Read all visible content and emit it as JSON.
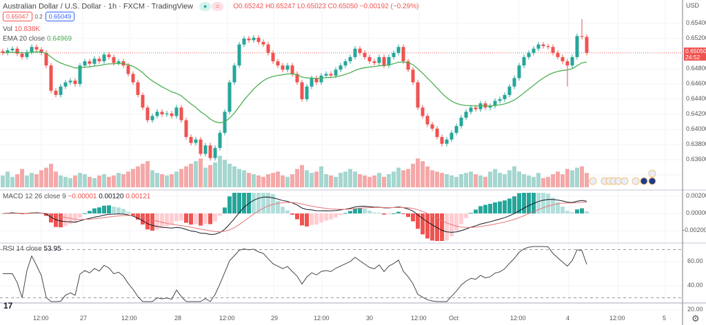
{
  "header": {
    "title": "Australian Dollar / U.S. Dollar · 1h · FXCM · TradingView",
    "ohlc": "O0.65242 H0.65247 L0.65023 C0.65050 −0.00192 (−0.29%)",
    "bid": "0.65047",
    "spread": "0.2",
    "ask": "0.65049"
  },
  "indicators": {
    "vol_label": "Vol",
    "vol_value": "10.838K",
    "ema_label": "EMA 20 close",
    "ema_value": "0.64969",
    "macd_label": "MACD 12 26 close 9",
    "macd_v1": "−0.00001",
    "macd_v2": "0.00120",
    "macd_v3": "0.00121",
    "rsi_label": "RSI 14 close",
    "rsi_value": "53.95"
  },
  "price_axis": {
    "currency": "USD",
    "ticks": [
      "0.65400",
      "0.65200",
      "0.64800",
      "0.64600",
      "0.64400",
      "0.64200",
      "0.64000",
      "0.63800",
      "0.63600"
    ],
    "last_price": "0.65050",
    "countdown": "24:52"
  },
  "macd_axis": {
    "ticks": [
      "0.00200",
      "0.00000",
      "-0.00200"
    ]
  },
  "rsi_axis": {
    "ticks": [
      "60.00",
      "40.00",
      "20.00"
    ]
  },
  "time_axis": {
    "ticks": [
      "12:00",
      "27",
      "12:00",
      "28",
      "12:00",
      "29",
      "12:00",
      "30",
      "12:00",
      "Oct",
      "12:00",
      "4",
      "12:00",
      "5"
    ]
  },
  "colors": {
    "up": "#26a69a",
    "down": "#ef5350",
    "ema": "#4caf50",
    "macd": "#131722",
    "signal": "#e57373"
  },
  "chart_data": {
    "type": "candlestick",
    "title": "Australian Dollar / U.S. Dollar · 1h · FXCM",
    "ylim": [
      0.6352,
      0.656
    ],
    "closes": [
      0.6505,
      0.6508,
      0.651,
      0.6504,
      0.65,
      0.6506,
      0.6512,
      0.6509,
      0.6505,
      0.649,
      0.646,
      0.6455,
      0.6465,
      0.647,
      0.6472,
      0.6468,
      0.649,
      0.6495,
      0.6492,
      0.6498,
      0.6495,
      0.6503,
      0.65,
      0.6493,
      0.6495,
      0.649,
      0.648,
      0.647,
      0.6455,
      0.644,
      0.6425,
      0.643,
      0.6435,
      0.6432,
      0.6433,
      0.643,
      0.644,
      0.6425,
      0.6405,
      0.6398,
      0.6402,
      0.6385,
      0.6395,
      0.638,
      0.6392,
      0.641,
      0.6435,
      0.647,
      0.649,
      0.6515,
      0.6522,
      0.652,
      0.6523,
      0.6518,
      0.6515,
      0.6505,
      0.6495,
      0.649,
      0.6485,
      0.649,
      0.648,
      0.647,
      0.645,
      0.6465,
      0.6475,
      0.647,
      0.6478,
      0.648,
      0.6478,
      0.6485,
      0.649,
      0.6495,
      0.65,
      0.651,
      0.6505,
      0.65,
      0.6495,
      0.6493,
      0.65,
      0.649,
      0.65,
      0.6505,
      0.6512,
      0.6495,
      0.6485,
      0.647,
      0.644,
      0.643,
      0.642,
      0.6415,
      0.6405,
      0.6397,
      0.6402,
      0.641,
      0.6418,
      0.6428,
      0.6435,
      0.644,
      0.6438,
      0.6445,
      0.644,
      0.6442,
      0.6448,
      0.645,
      0.6455,
      0.6465,
      0.6475,
      0.649,
      0.65,
      0.6505,
      0.651,
      0.6515,
      0.6513,
      0.6512,
      0.6505,
      0.65,
      0.6495,
      0.649,
      0.65,
      0.6525,
      0.6524,
      0.6505
    ],
    "volumes_k": [
      9,
      12,
      8,
      10,
      14,
      9,
      11,
      10,
      13,
      15,
      18,
      12,
      9,
      8,
      7,
      9,
      11,
      10,
      8,
      7,
      9,
      10,
      8,
      9,
      11,
      10,
      12,
      14,
      16,
      18,
      20,
      13,
      11,
      10,
      9,
      10,
      12,
      14,
      16,
      18,
      20,
      22,
      15,
      17,
      19,
      24,
      21,
      18,
      16,
      14,
      13,
      11,
      10,
      9,
      8,
      10,
      11,
      12,
      9,
      8,
      10,
      14,
      17,
      13,
      11,
      12,
      16,
      10,
      9,
      8,
      11,
      12,
      14,
      12,
      10,
      9,
      8,
      9,
      11,
      8,
      10,
      12,
      15,
      13,
      14,
      18,
      22,
      20,
      16,
      13,
      12,
      11,
      10,
      9,
      8,
      10,
      11,
      12,
      10,
      9,
      8,
      12,
      14,
      11,
      10,
      13,
      16,
      12,
      10,
      9,
      8,
      11,
      7,
      8,
      10,
      12,
      10,
      14,
      13,
      15,
      16,
      11
    ]
  }
}
